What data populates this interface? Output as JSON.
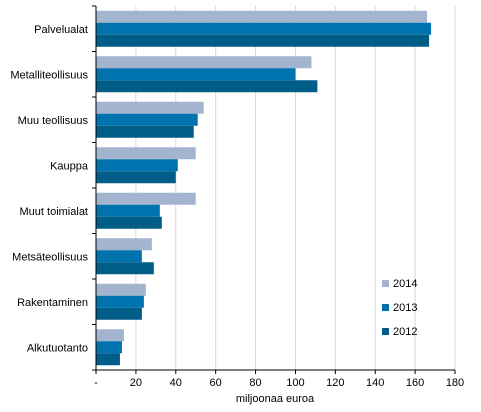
{
  "chart_data": {
    "type": "bar",
    "orientation": "horizontal",
    "categories": [
      "Palvelualat",
      "Metalliteollisuus",
      "Muu teollisuus",
      "Kauppa",
      "Muut toimialat",
      "Metsäteollisuus",
      "Rakentaminen",
      "Alkutuotanto"
    ],
    "series": [
      {
        "name": "2014",
        "color": "#a3b4cf",
        "values": [
          166,
          108,
          54,
          50,
          50,
          28,
          25,
          14
        ]
      },
      {
        "name": "2013",
        "color": "#0072ad",
        "values": [
          168,
          100,
          51,
          41,
          32,
          23,
          24,
          13
        ]
      },
      {
        "name": "2012",
        "color": "#005d87",
        "values": [
          167,
          111,
          49,
          40,
          33,
          29,
          23,
          12
        ]
      }
    ],
    "xlabel": "miljoonaa euroa",
    "ylabel": "",
    "xlim": [
      0,
      180
    ],
    "xticks": [
      "-",
      "20",
      "40",
      "60",
      "80",
      "100",
      "120",
      "140",
      "160",
      "180"
    ],
    "xgrid": true,
    "legend_position": "bottom-right",
    "legend_order": [
      "2014",
      "2013",
      "2012"
    ]
  }
}
